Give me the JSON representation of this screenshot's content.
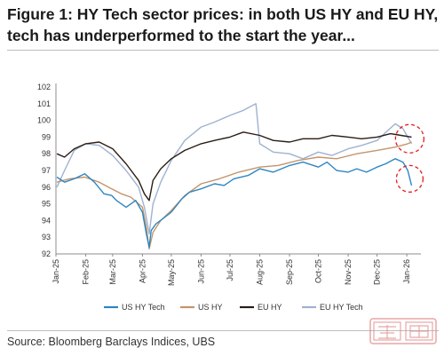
{
  "figure": {
    "title": "Figure 1: HY Tech sector prices: in both US HY and EU HY, tech has underperformed to the start the year...",
    "source": "Source: Bloomberg Barclays Indices, UBS"
  },
  "colors": {
    "us_hy_tech": "#2e86c1",
    "us_hy": "#c4956a",
    "eu_hy": "#2b1d14",
    "eu_hy_tech": "#9fb2cf",
    "highlight": "#e02020"
  },
  "chart_data": {
    "type": "line",
    "title": "",
    "xlabel": "",
    "ylabel": "",
    "ylim": [
      92,
      102
    ],
    "yticks": [
      92,
      93,
      94,
      95,
      96,
      97,
      98,
      99,
      100,
      101,
      102
    ],
    "xlim": [
      "2025-01-01",
      "2026-01-01"
    ],
    "xticks": [
      "Jan-25",
      "Feb-25",
      "Mar-25",
      "Apr-25",
      "May-25",
      "Jun-25",
      "Jul-25",
      "Aug-25",
      "Sep-25",
      "Oct-25",
      "Nov-25",
      "Dec-25",
      "Jan-26"
    ],
    "grid": false,
    "legend": "bottom",
    "highlights": [
      "dashed circle around end of EU HY lines (early Jan-26)",
      "dashed circle around end of US HY Tech line (early Jan-26)"
    ],
    "series": [
      {
        "name": "US HY Tech",
        "color": "#2e86c1",
        "points": [
          [
            "2025-01-02",
            96.6
          ],
          [
            "2025-01-10",
            96.3
          ],
          [
            "2025-01-20",
            96.5
          ],
          [
            "2025-01-31",
            96.8
          ],
          [
            "2025-02-10",
            96.3
          ],
          [
            "2025-02-20",
            95.6
          ],
          [
            "2025-02-28",
            95.5
          ],
          [
            "2025-03-05",
            95.2
          ],
          [
            "2025-03-15",
            94.8
          ],
          [
            "2025-03-25",
            95.2
          ],
          [
            "2025-04-01",
            94.5
          ],
          [
            "2025-04-05",
            93.2
          ],
          [
            "2025-04-08",
            92.4
          ],
          [
            "2025-04-10",
            93.4
          ],
          [
            "2025-04-15",
            93.8
          ],
          [
            "2025-04-22",
            94.1
          ],
          [
            "2025-05-01",
            94.5
          ],
          [
            "2025-05-12",
            95.3
          ],
          [
            "2025-05-20",
            95.7
          ],
          [
            "2025-06-01",
            95.9
          ],
          [
            "2025-06-15",
            96.2
          ],
          [
            "2025-06-25",
            96.1
          ],
          [
            "2025-07-05",
            96.5
          ],
          [
            "2025-07-20",
            96.7
          ],
          [
            "2025-08-01",
            97.1
          ],
          [
            "2025-08-15",
            96.9
          ],
          [
            "2025-09-01",
            97.3
          ],
          [
            "2025-09-15",
            97.5
          ],
          [
            "2025-10-01",
            97.2
          ],
          [
            "2025-10-10",
            97.5
          ],
          [
            "2025-10-20",
            97.0
          ],
          [
            "2025-11-01",
            96.9
          ],
          [
            "2025-11-10",
            97.1
          ],
          [
            "2025-11-20",
            96.9
          ],
          [
            "2025-12-01",
            97.2
          ],
          [
            "2025-12-10",
            97.4
          ],
          [
            "2025-12-20",
            97.7
          ],
          [
            "2025-12-28",
            97.5
          ],
          [
            "2026-01-02",
            97.0
          ],
          [
            "2026-01-06",
            96.1
          ]
        ]
      },
      {
        "name": "US HY",
        "color": "#c4956a",
        "points": [
          [
            "2025-01-02",
            96.3
          ],
          [
            "2025-01-15",
            96.5
          ],
          [
            "2025-01-31",
            96.6
          ],
          [
            "2025-02-15",
            96.3
          ],
          [
            "2025-02-28",
            95.9
          ],
          [
            "2025-03-10",
            95.6
          ],
          [
            "2025-03-20",
            95.4
          ],
          [
            "2025-04-01",
            94.8
          ],
          [
            "2025-04-05",
            93.6
          ],
          [
            "2025-04-08",
            92.3
          ],
          [
            "2025-04-12",
            93.3
          ],
          [
            "2025-04-20",
            94.0
          ],
          [
            "2025-05-01",
            94.6
          ],
          [
            "2025-05-15",
            95.5
          ],
          [
            "2025-06-01",
            96.2
          ],
          [
            "2025-06-20",
            96.5
          ],
          [
            "2025-07-10",
            96.9
          ],
          [
            "2025-08-01",
            97.2
          ],
          [
            "2025-08-20",
            97.3
          ],
          [
            "2025-09-10",
            97.6
          ],
          [
            "2025-10-01",
            97.8
          ],
          [
            "2025-10-20",
            97.7
          ],
          [
            "2025-11-10",
            98.0
          ],
          [
            "2025-12-01",
            98.2
          ],
          [
            "2025-12-20",
            98.4
          ],
          [
            "2026-01-02",
            98.6
          ],
          [
            "2026-01-06",
            98.7
          ]
        ]
      },
      {
        "name": "EU HY",
        "color": "#2b1d14",
        "points": [
          [
            "2025-01-02",
            98.0
          ],
          [
            "2025-01-10",
            97.8
          ],
          [
            "2025-01-20",
            98.3
          ],
          [
            "2025-02-01",
            98.6
          ],
          [
            "2025-02-15",
            98.7
          ],
          [
            "2025-03-01",
            98.3
          ],
          [
            "2025-03-15",
            97.4
          ],
          [
            "2025-03-28",
            96.4
          ],
          [
            "2025-04-03",
            95.6
          ],
          [
            "2025-04-08",
            95.2
          ],
          [
            "2025-04-12",
            96.4
          ],
          [
            "2025-04-20",
            97.1
          ],
          [
            "2025-05-01",
            97.7
          ],
          [
            "2025-05-15",
            98.2
          ],
          [
            "2025-06-01",
            98.6
          ],
          [
            "2025-06-15",
            98.8
          ],
          [
            "2025-07-01",
            99.0
          ],
          [
            "2025-07-15",
            99.3
          ],
          [
            "2025-08-01",
            99.1
          ],
          [
            "2025-08-15",
            98.8
          ],
          [
            "2025-09-01",
            98.7
          ],
          [
            "2025-09-15",
            98.9
          ],
          [
            "2025-10-01",
            98.9
          ],
          [
            "2025-10-15",
            99.1
          ],
          [
            "2025-11-01",
            99.0
          ],
          [
            "2025-11-15",
            98.9
          ],
          [
            "2025-12-01",
            99.0
          ],
          [
            "2025-12-15",
            99.2
          ],
          [
            "2025-12-26",
            99.1
          ],
          [
            "2026-01-06",
            99.0
          ]
        ]
      },
      {
        "name": "EU HY Tech",
        "color": "#9fb2cf",
        "points": [
          [
            "2025-01-02",
            96.0
          ],
          [
            "2025-01-10",
            97.0
          ],
          [
            "2025-01-20",
            98.2
          ],
          [
            "2025-02-01",
            98.6
          ],
          [
            "2025-02-15",
            98.5
          ],
          [
            "2025-03-01",
            97.9
          ],
          [
            "2025-03-15",
            97.0
          ],
          [
            "2025-03-28",
            96.0
          ],
          [
            "2025-04-03",
            94.8
          ],
          [
            "2025-04-08",
            93.2
          ],
          [
            "2025-04-12",
            95.0
          ],
          [
            "2025-04-20",
            96.3
          ],
          [
            "2025-05-01",
            97.6
          ],
          [
            "2025-05-15",
            98.8
          ],
          [
            "2025-06-01",
            99.6
          ],
          [
            "2025-06-15",
            99.9
          ],
          [
            "2025-07-01",
            100.3
          ],
          [
            "2025-07-15",
            100.6
          ],
          [
            "2025-07-28",
            101.0
          ],
          [
            "2025-08-01",
            98.6
          ],
          [
            "2025-08-15",
            98.1
          ],
          [
            "2025-09-01",
            98.0
          ],
          [
            "2025-09-15",
            97.7
          ],
          [
            "2025-10-01",
            98.1
          ],
          [
            "2025-10-15",
            97.9
          ],
          [
            "2025-11-01",
            98.3
          ],
          [
            "2025-11-15",
            98.5
          ],
          [
            "2025-12-01",
            98.8
          ],
          [
            "2025-12-20",
            99.8
          ],
          [
            "2025-12-28",
            99.5
          ],
          [
            "2026-01-06",
            98.6
          ]
        ]
      }
    ]
  }
}
